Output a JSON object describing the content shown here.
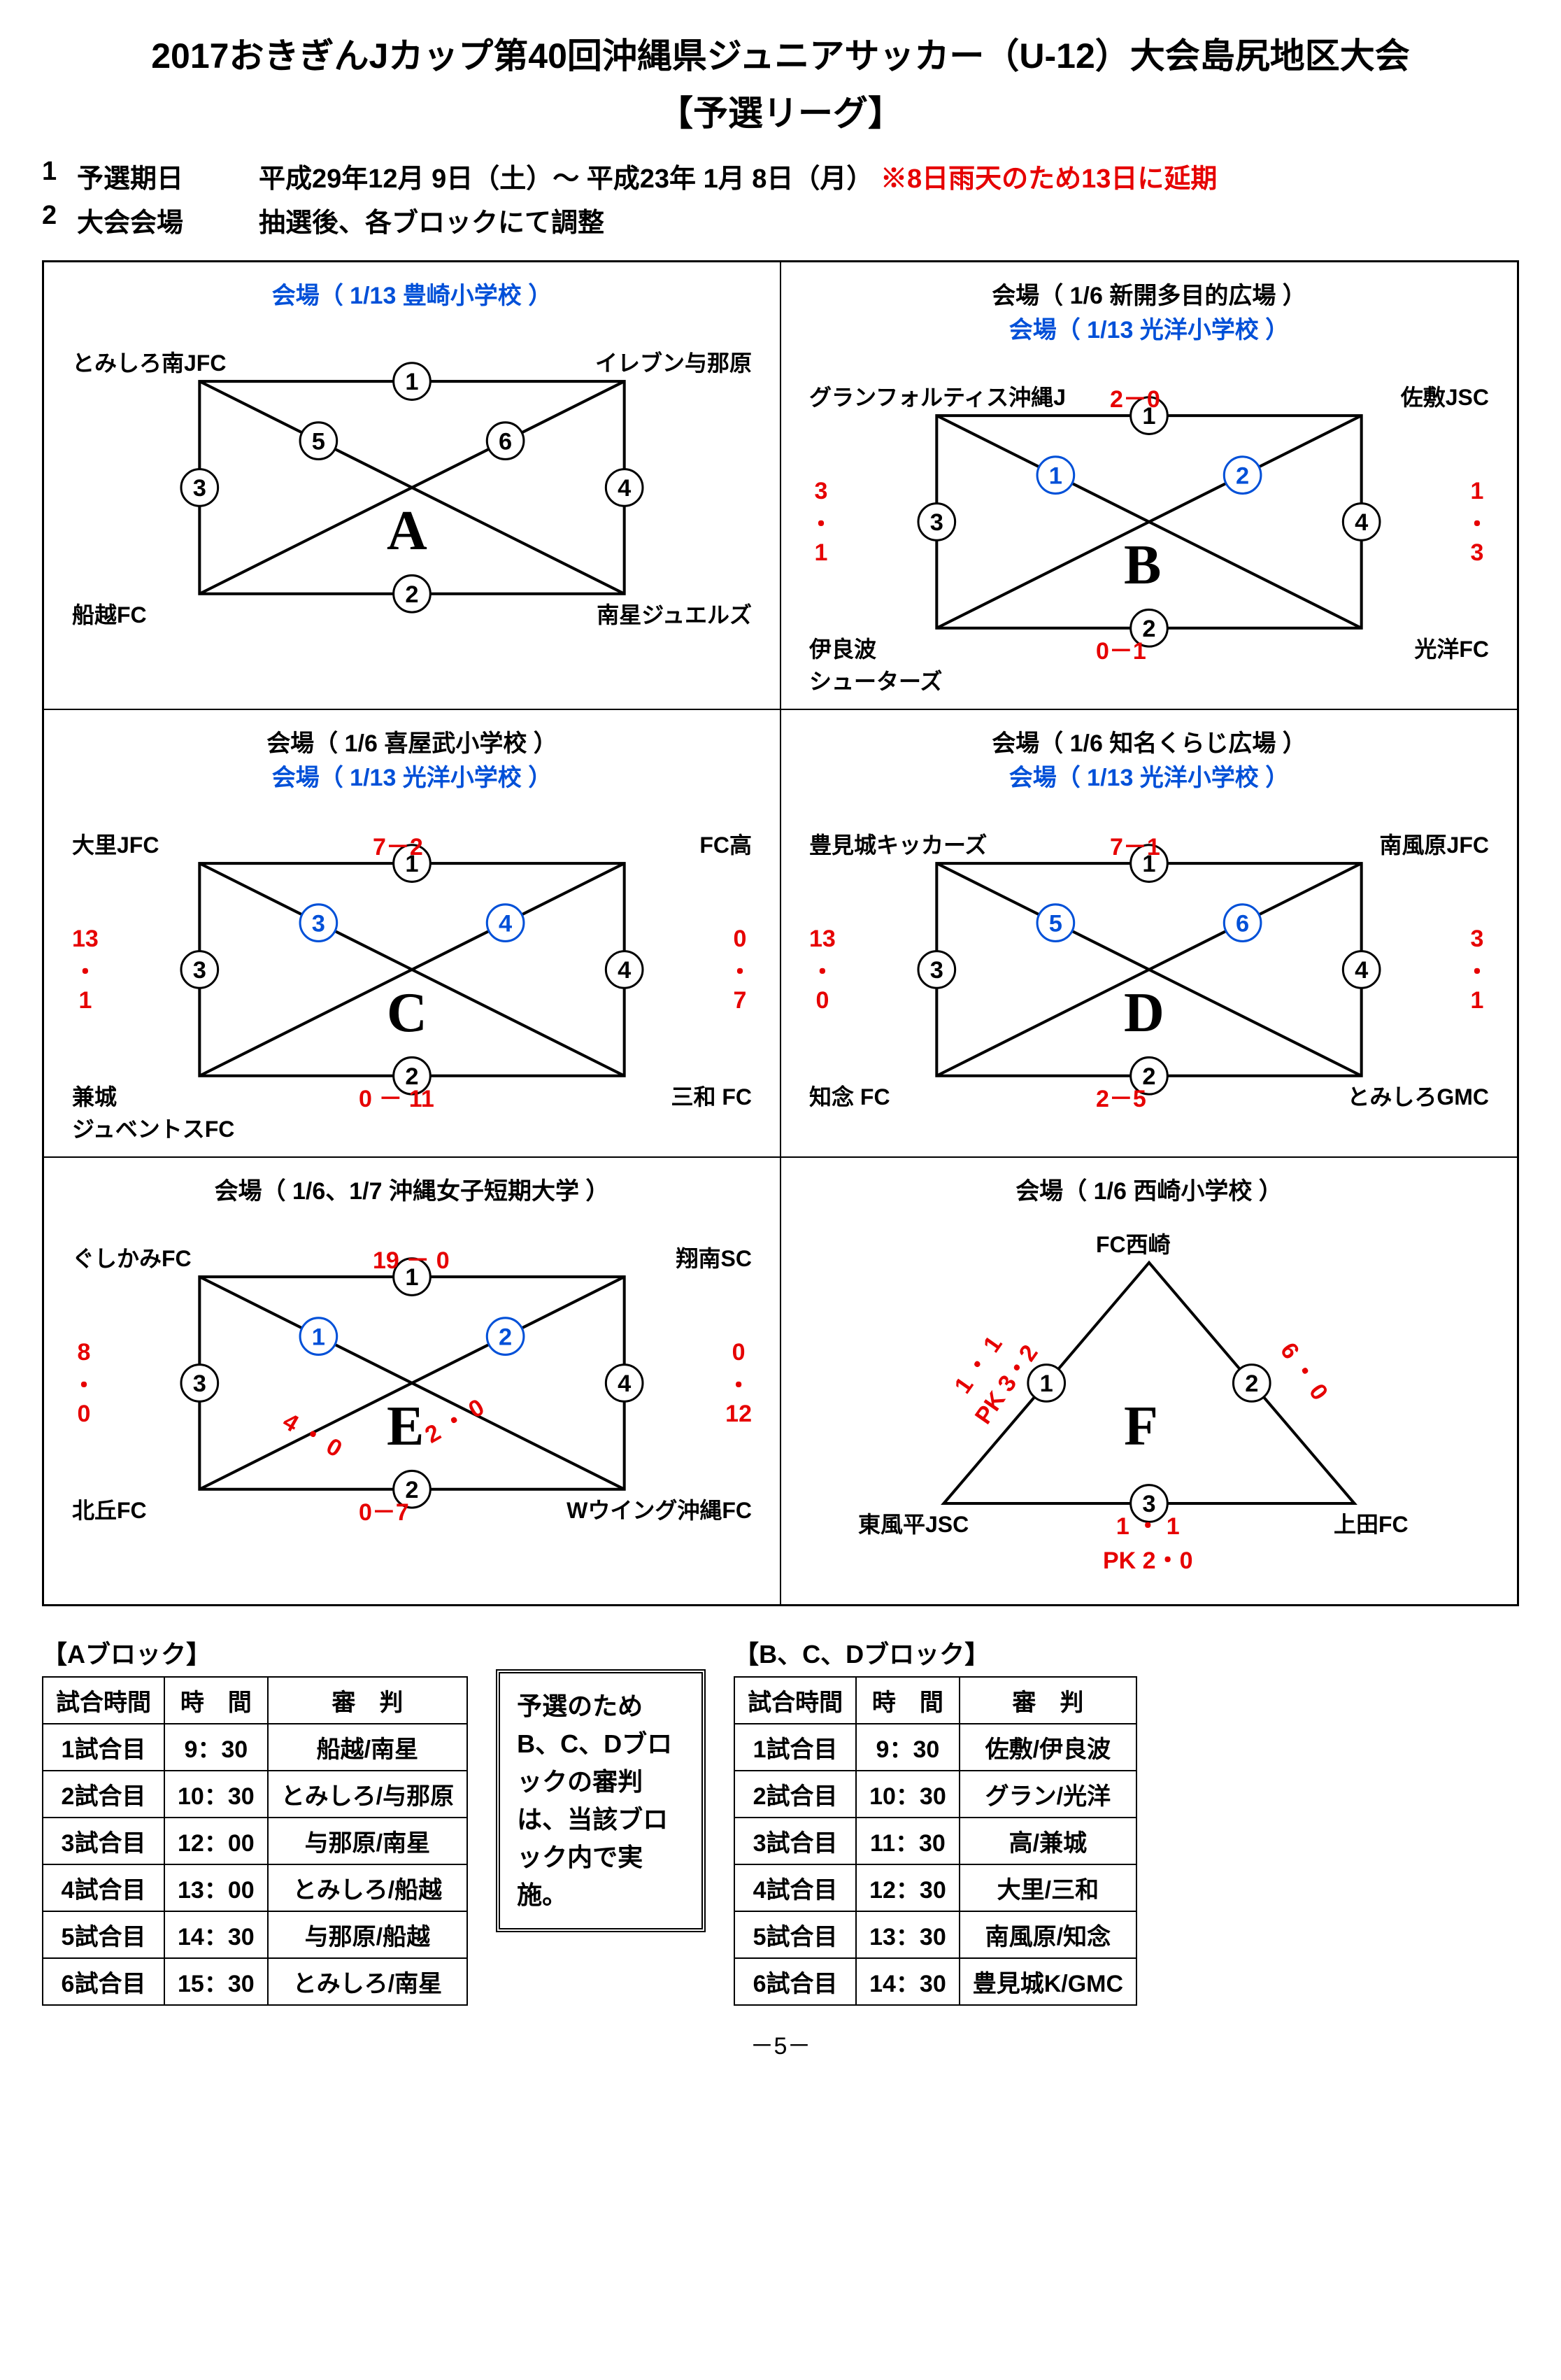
{
  "title": "2017おきぎんJカップ第40回沖縄県ジュニアサッカー（U-12）大会島尻地区大会",
  "subtitle": "【予選リーグ】",
  "info": [
    {
      "num": "1",
      "label": "予選期日",
      "value": "平成29年12月 9日（土）～ 平成23年 1月 8日（月）",
      "note": "※8日雨天のため13日に延期"
    },
    {
      "num": "2",
      "label": "大会会場",
      "value": "抽選後、各ブロックにて調整",
      "note": ""
    }
  ],
  "blocks": {
    "A": {
      "venues": [
        {
          "text": "会場（ 1/13  豊崎小学校  ）",
          "color": "#0050d8",
          "prefix": ""
        }
      ],
      "teams": {
        "tl": "とみしろ南JFC",
        "tr": "イレブン与那原",
        "bl": "船越FC",
        "br": "南星ジュエルズ"
      },
      "matchNums": [
        "①",
        "②",
        "③",
        "④",
        "⑤",
        "⑥"
      ],
      "scores": {}
    },
    "B": {
      "venues": [
        {
          "text": "会場（ 1/6 新開多目的広場 ）",
          "color": "#000"
        },
        {
          "text": "会場（ 1/13  光洋小学校      ）",
          "color": "#0050d8"
        }
      ],
      "teams": {
        "tl": "グランフォルティス沖縄J",
        "tr": "佐敷JSC",
        "bl": "伊良波\nシューターズ",
        "br": "光洋FC"
      },
      "matchNums": [
        "①",
        "②",
        "③",
        "④",
        "①",
        "②"
      ],
      "blueIdx": [
        4,
        5
      ],
      "scores": {
        "top": "2－0",
        "bottom": "0－1",
        "left": "3\n・\n1",
        "right": "1\n・\n3"
      }
    },
    "C": {
      "venues": [
        {
          "text": "会場（ 1/6 喜屋武小学校  ）",
          "color": "#000"
        },
        {
          "text": "会場（ 1/13  光洋小学校  ）",
          "color": "#0050d8"
        }
      ],
      "teams": {
        "tl": "大里JFC",
        "tr": "FC高",
        "bl": "兼城\nジュベントスFC",
        "br": "三和 FC"
      },
      "matchNums": [
        "①",
        "②",
        "③",
        "④",
        "③",
        "④"
      ],
      "blueIdx": [
        4,
        5
      ],
      "scores": {
        "top": "7－2",
        "bottom": "0 － 11",
        "left": "13\n・\n1",
        "right": "0\n・\n7"
      }
    },
    "D": {
      "venues": [
        {
          "text": "会場（ 1/6  知名くらじ広場  ）",
          "color": "#000"
        },
        {
          "text": "会場（ 1/13  光洋小学校      ）",
          "color": "#0050d8"
        }
      ],
      "teams": {
        "tl": "豊見城キッカーズ",
        "tr": "南風原JFC",
        "bl": "知念 FC",
        "br": "とみしろGMC"
      },
      "matchNums": [
        "①",
        "②",
        "③",
        "④",
        "⑤",
        "⑥"
      ],
      "blueIdx": [
        4,
        5
      ],
      "scores": {
        "top": "7－1",
        "bottom": "2－5",
        "left": "13\n・\n0",
        "right": "3\n・\n1"
      }
    },
    "E": {
      "venues": [
        {
          "text": "会場（ 1/6、1/7  沖縄女子短期大学  ）",
          "color": "#000"
        }
      ],
      "teams": {
        "tl": "ぐしかみFC",
        "tr": "翔南SC",
        "bl": "北丘FC",
        "br": "Wウイング沖縄FC"
      },
      "matchNums": [
        "①",
        "②",
        "③",
        "④",
        "①",
        "②"
      ],
      "blueIdx": [
        4,
        5
      ],
      "scores": {
        "top": "19 － 0",
        "bottom": "0－7",
        "left": "8\n・\n0",
        "right": "0\n・\n12",
        "diag1": "4 ・ 0",
        "diag2": "2 ・ 0"
      }
    },
    "F": {
      "type": "triangle",
      "venues": [
        {
          "text": "会場（ 1/6 西崎小学校      ）",
          "color": "#000"
        }
      ],
      "teams": {
        "top": "FC西崎",
        "bl": "東風平JSC",
        "br": "上田FC"
      },
      "matchNums": [
        "①",
        "②",
        "③"
      ],
      "scores": {
        "left": "1 ・ 1\nPK 3・2",
        "right": "6 ・ 0",
        "bottom": "1 ・ 1\nPK 2・0"
      }
    }
  },
  "schedules": {
    "A": {
      "title": "【Aブロック】",
      "rows": [
        [
          "1試合目",
          "9：30",
          "船越/南星"
        ],
        [
          "2試合目",
          "10：30",
          "とみしろ/与那原"
        ],
        [
          "3試合目",
          "12：00",
          "与那原/南星"
        ],
        [
          "4試合目",
          "13：00",
          "とみしろ/船越"
        ],
        [
          "5試合目",
          "14：30",
          "与那原/船越"
        ],
        [
          "6試合目",
          "15：30",
          "とみしろ/南星"
        ]
      ]
    },
    "BCD": {
      "title": "【B、C、Dブロック】",
      "rows": [
        [
          "1試合目",
          "9：30",
          "佐敷/伊良波"
        ],
        [
          "2試合目",
          "10：30",
          "グラン/光洋"
        ],
        [
          "3試合目",
          "11：30",
          "高/兼城"
        ],
        [
          "4試合目",
          "12：30",
          "大里/三和"
        ],
        [
          "5試合目",
          "13：30",
          "南風原/知念"
        ],
        [
          "6試合目",
          "14：30",
          "豊見城K/GMC"
        ]
      ]
    }
  },
  "schedHeaders": [
    "試合時間",
    "時　間",
    "審　判"
  ],
  "noteBox": "予選のためB、C、Dブロックの審判は、当該ブロック内で実施。",
  "pageNum": "－5－"
}
